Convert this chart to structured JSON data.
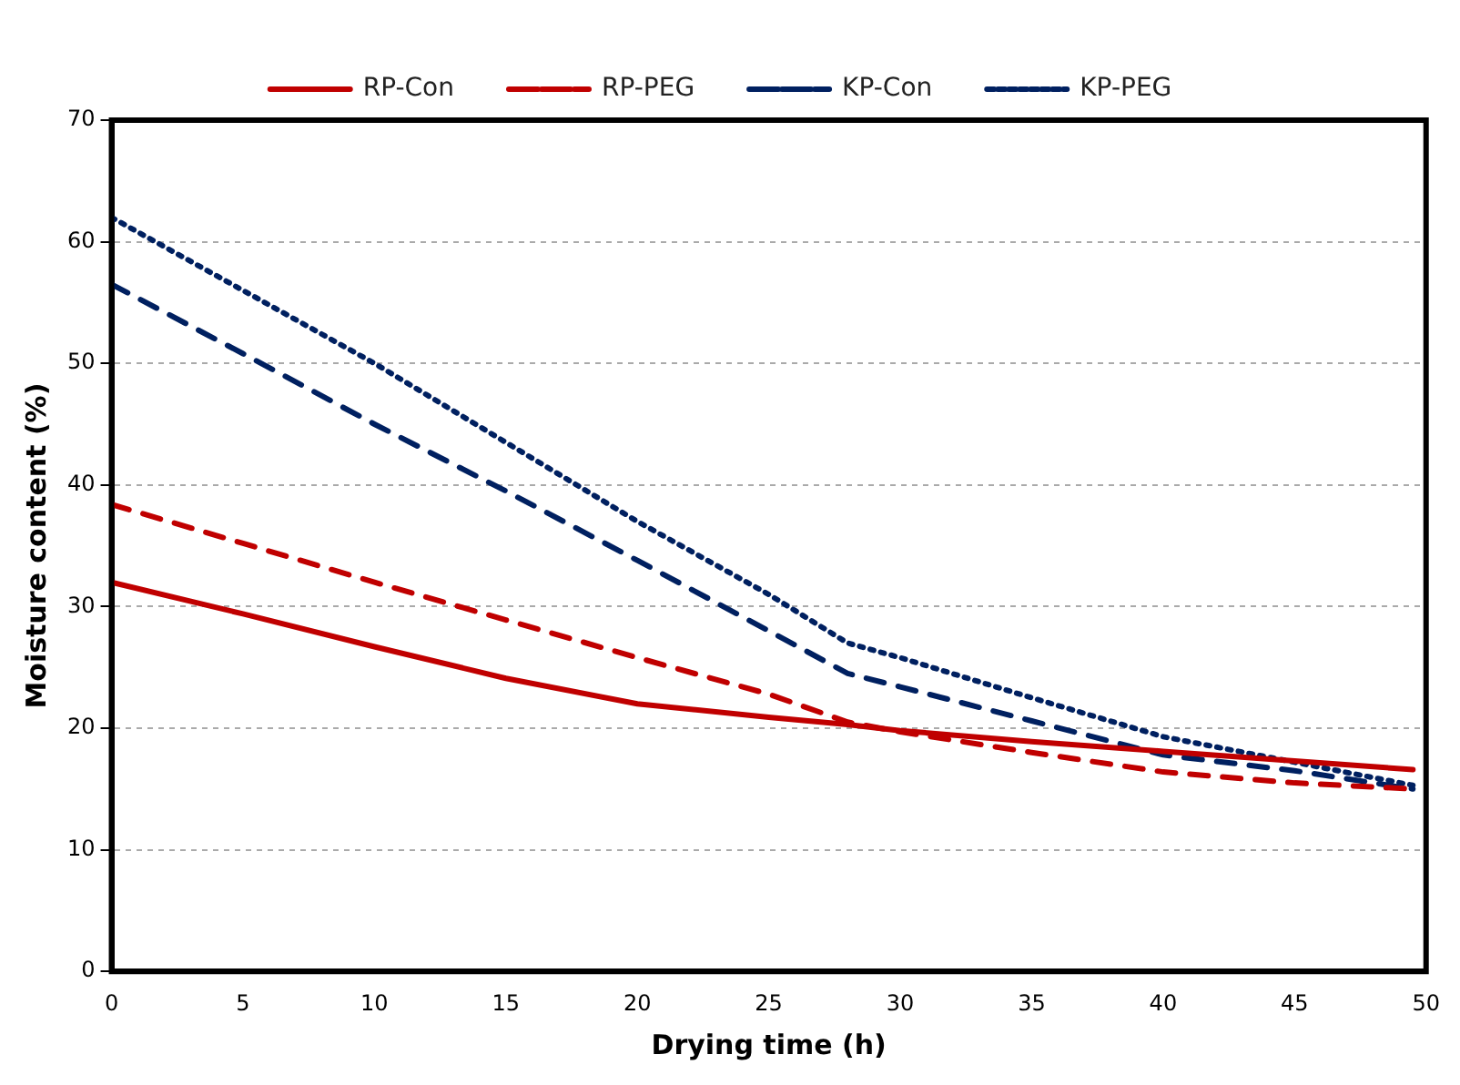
{
  "chart_data": {
    "type": "line",
    "xlabel": "Drying time (h)",
    "ylabel": "Moisture content (%)",
    "xlim": [
      0,
      50
    ],
    "xticks": [
      0,
      5,
      10,
      15,
      20,
      25,
      30,
      35,
      40,
      45,
      50
    ],
    "ylim": [
      0,
      70
    ],
    "yticks": [
      0,
      10,
      20,
      30,
      40,
      50,
      60,
      70
    ],
    "grid": "y",
    "legend": "top",
    "marker": "none",
    "x": [
      0,
      5,
      10,
      15,
      20,
      25,
      28,
      30,
      35,
      40,
      45,
      49.5
    ],
    "series": [
      {
        "name": "RP-Con",
        "color": "#c00000",
        "line_style": "solid",
        "values": [
          32,
          29.4,
          26.7,
          24.1,
          22,
          20.9,
          20.3,
          19.8,
          18.9,
          18.1,
          17.3,
          16.6
        ]
      },
      {
        "name": "RP-PEG",
        "color": "#c00000",
        "line_style": "dashed",
        "values": [
          38.4,
          35.2,
          32,
          28.9,
          25.8,
          22.8,
          20.5,
          19.7,
          18,
          16.4,
          15.5,
          15
        ]
      },
      {
        "name": "KP-Con",
        "color": "#002060",
        "line_style": "dashed",
        "values": [
          56.5,
          50.8,
          45,
          39.5,
          33.8,
          28,
          24.5,
          23.4,
          20.6,
          17.8,
          16.5,
          15
        ]
      },
      {
        "name": "KP-PEG",
        "color": "#002060",
        "line_style": "dotted",
        "values": [
          62,
          56,
          50,
          43.5,
          37,
          31,
          27,
          25.8,
          22.5,
          19.3,
          17.2,
          15.3
        ]
      }
    ]
  }
}
